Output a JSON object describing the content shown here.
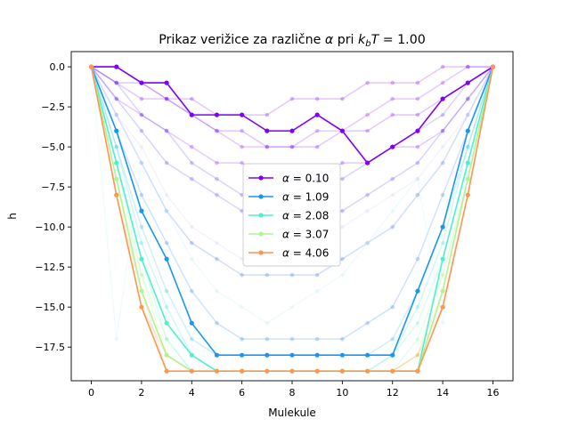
{
  "chart_data": {
    "type": "line",
    "title": "Prikaz verižice za različne α pri k_bT = 1.00",
    "title_parts": {
      "prefix": "Prikaz verižice za različne ",
      "alpha": "α",
      "mid": " pri ",
      "k": "k",
      "sub": "b",
      "T": "T",
      "suffix": " = 1.00"
    },
    "xlabel": "Mulekule",
    "ylabel": "h",
    "xlim": [
      -0.8,
      16.8
    ],
    "ylim": [
      -19.6,
      0.95
    ],
    "xticks": [
      0,
      2,
      4,
      6,
      8,
      10,
      12,
      14,
      16
    ],
    "xtick_labels": [
      "0",
      "2",
      "4",
      "6",
      "8",
      "10",
      "12",
      "14",
      "16"
    ],
    "yticks": [
      0,
      -2.5,
      -5,
      -7.5,
      -10,
      -12.5,
      -15,
      -17.5
    ],
    "ytick_labels": [
      "0.0",
      "−2.5",
      "−5.0",
      "−7.5",
      "−10.0",
      "−12.5",
      "−15.0",
      "−17.5"
    ],
    "legend_position": "center",
    "grid": false,
    "x": [
      0,
      1,
      2,
      3,
      4,
      5,
      6,
      7,
      8,
      9,
      10,
      11,
      12,
      13,
      14,
      15,
      16
    ],
    "series": [
      {
        "name": "α = 0.10",
        "label_prefix": "α = ",
        "label_value": "0.10",
        "color": "#7f00ff",
        "values": [
          0,
          0,
          -1,
          -1,
          -3,
          -3,
          -3,
          -4,
          -4,
          -3,
          -4,
          -6,
          -5,
          -4,
          -2,
          -1,
          0
        ]
      },
      {
        "name": "α = 1.09",
        "label_prefix": "α = ",
        "label_value": "1.09",
        "color": "#1996f3",
        "values": [
          0,
          -4,
          -9,
          -12,
          -16,
          -18,
          -18,
          -18,
          -18,
          -18,
          -18,
          -18,
          -18,
          -14,
          -10,
          -4,
          0
        ]
      },
      {
        "name": "α = 2.08",
        "label_prefix": "α = ",
        "label_value": "2.08",
        "color": "#4cf2ce",
        "values": [
          0,
          -6,
          -12,
          -16,
          -18,
          -19,
          -19,
          -19,
          -19,
          -19,
          -19,
          -19,
          -19,
          -19,
          -12,
          -6,
          0
        ]
      },
      {
        "name": "α = 3.07",
        "label_prefix": "α = ",
        "label_value": "3.07",
        "color": "#b2f396",
        "values": [
          0,
          -7,
          -14,
          -18,
          -19,
          -19,
          -19,
          -19,
          -19,
          -19,
          -19,
          -19,
          -19,
          -19,
          -14,
          -7,
          0
        ]
      },
      {
        "name": "α = 4.06",
        "label_prefix": "α = ",
        "label_value": "4.06",
        "color": "#ff964f",
        "values": [
          0,
          -8,
          -15,
          -19,
          -19,
          -19,
          -19,
          -19,
          -19,
          -19,
          -19,
          -19,
          -19,
          -19,
          -15,
          -8,
          0
        ]
      }
    ],
    "faint_series": [
      {
        "color": "#7f00ff",
        "values": [
          0,
          -1,
          -2,
          -2,
          -3,
          -4,
          -4,
          -5,
          -5,
          -5,
          -4,
          -4,
          -3,
          -3,
          -2,
          -1,
          0
        ]
      },
      {
        "color": "#7f00ff",
        "values": [
          0,
          -1,
          -1,
          -2,
          -2,
          -3,
          -3,
          -3,
          -2,
          -2,
          -2,
          -1,
          -1,
          -1,
          0,
          0,
          0
        ]
      },
      {
        "color": "#8a0ffd",
        "values": [
          0,
          -2,
          -3,
          -4,
          -5,
          -6,
          -6,
          -7,
          -7,
          -7,
          -6,
          -6,
          -5,
          -5,
          -4,
          -2,
          0
        ]
      },
      {
        "color": "#8a0ffd",
        "values": [
          0,
          0,
          -1,
          -2,
          -3,
          -4,
          -5,
          -5,
          -5,
          -4,
          -4,
          -3,
          -2,
          -2,
          -1,
          0,
          0
        ]
      },
      {
        "color": "#5a3cf9",
        "values": [
          0,
          -2,
          -4,
          -6,
          -7,
          -8,
          -9,
          -9,
          -9,
          -9,
          -9,
          -8,
          -7,
          -6,
          -4,
          -2,
          0
        ]
      },
      {
        "color": "#5a3cf9",
        "values": [
          0,
          -1,
          -3,
          -4,
          -6,
          -7,
          -8,
          -8,
          -8,
          -7,
          -7,
          -6,
          -5,
          -4,
          -3,
          -1,
          0
        ]
      },
      {
        "color": "#3a6af5",
        "values": [
          0,
          -3,
          -6,
          -9,
          -11,
          -12,
          -13,
          -13,
          -13,
          -13,
          -12,
          -11,
          -10,
          -8,
          -6,
          -3,
          0
        ]
      },
      {
        "color": "#2a80f4",
        "values": [
          0,
          -4,
          -8,
          -11,
          -14,
          -16,
          -17,
          -17,
          -17,
          -17,
          -17,
          -16,
          -15,
          -12,
          -8,
          -4,
          0
        ]
      },
      {
        "color": "#2eb1eb",
        "values": [
          0,
          -5,
          -10,
          -14,
          -17,
          -18,
          -18,
          -18,
          -18,
          -18,
          -18,
          -18,
          -17,
          -14,
          -10,
          -5,
          0
        ]
      },
      {
        "color": "#3cd4dc",
        "values": [
          0,
          -5,
          -11,
          -15,
          -18,
          -19,
          -19,
          -19,
          -19,
          -19,
          -19,
          -19,
          -18,
          -15,
          -11,
          -5,
          0
        ]
      },
      {
        "color": "#62f5c2",
        "values": [
          0,
          -6,
          -12,
          -17,
          -19,
          -19,
          -19,
          -19,
          -19,
          -19,
          -19,
          -19,
          -18,
          -16,
          -12,
          -6,
          0
        ]
      },
      {
        "color": "#8cf9ae",
        "values": [
          0,
          -6,
          -13,
          -17,
          -19,
          -19,
          -19,
          -19,
          -19,
          -19,
          -19,
          -19,
          -19,
          -17,
          -13,
          -7,
          0
        ]
      },
      {
        "color": "#c8ec8c",
        "values": [
          0,
          -7,
          -13,
          -18,
          -19,
          -19,
          -19,
          -19,
          -19,
          -19,
          -19,
          -19,
          -19,
          -18,
          -13,
          -7,
          0
        ]
      },
      {
        "color": "#e6c878",
        "values": [
          0,
          -7,
          -14,
          -18,
          -19,
          -19,
          -19,
          -19,
          -19,
          -19,
          -19,
          -19,
          -19,
          -18,
          -14,
          -7,
          0
        ]
      },
      {
        "color": "#ffb06a",
        "values": [
          0,
          -8,
          -14,
          -19,
          -19,
          -19,
          -19,
          -19,
          -19,
          -19,
          -19,
          -19,
          -19,
          -19,
          -15,
          -8,
          0
        ]
      },
      {
        "color": "#ff9a55",
        "values": [
          0,
          -8,
          -15,
          -18,
          -19,
          -19,
          -19,
          -19,
          -19,
          -19,
          -19,
          -19,
          -19,
          -18,
          -15,
          -8,
          0
        ]
      },
      {
        "color": "#c0e8f8",
        "values": [
          0,
          -17,
          -6,
          -9,
          -12,
          -14,
          -15,
          -16,
          -15,
          -14,
          -13,
          -11,
          -9,
          -7,
          -16,
          -6,
          0
        ]
      },
      {
        "color": "#d8c8fb",
        "values": [
          0,
          -3,
          -5,
          -8,
          -10,
          -11,
          -12,
          -12,
          -12,
          -11,
          -10,
          -9,
          -8,
          -7,
          -5,
          -3,
          0
        ]
      }
    ]
  }
}
